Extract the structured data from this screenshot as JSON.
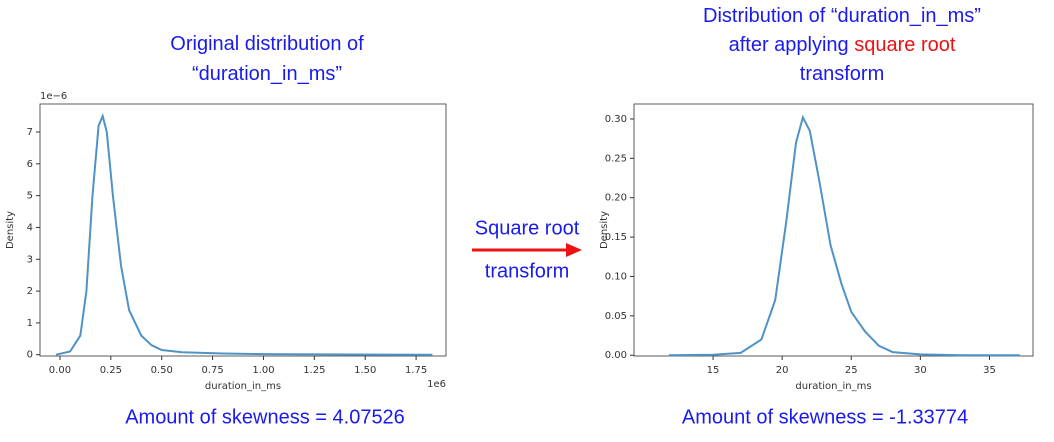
{
  "chart_data": [
    {
      "type": "line",
      "title": [
        "Original distribution of",
        "“duration_in_ms”"
      ],
      "title_color": "#1a1aee",
      "x": [
        -0.02,
        0.05,
        0.1,
        0.13,
        0.16,
        0.19,
        0.21,
        0.23,
        0.26,
        0.3,
        0.34,
        0.4,
        0.45,
        0.5,
        0.6,
        0.8,
        1.0,
        1.3,
        1.6,
        1.83
      ],
      "values": [
        0,
        0.1,
        0.6,
        2,
        5,
        7.2,
        7.5,
        7,
        5,
        2.8,
        1.4,
        0.6,
        0.3,
        0.15,
        0.08,
        0.04,
        0.02,
        0.01,
        0.005,
        0
      ],
      "color": "#4f93c6",
      "xlabel": "duration_in_ms",
      "ylabel": "Density",
      "x_offset": "1e6",
      "y_offset": "1e−6",
      "xlim": [
        -0.098,
        1.897
      ],
      "ylim": [
        -0.04,
        7.88
      ],
      "xticks": [
        {
          "value": 0,
          "label": "0.00"
        },
        {
          "value": 0.25,
          "label": "0.25"
        },
        {
          "value": 0.5,
          "label": "0.50"
        },
        {
          "value": 0.75,
          "label": "0.75"
        },
        {
          "value": 1,
          "label": "1.00"
        },
        {
          "value": 1.25,
          "label": "1.25"
        },
        {
          "value": 1.5,
          "label": "1.50"
        },
        {
          "value": 1.75,
          "label": "1.75"
        }
      ],
      "yticks": [
        0,
        1,
        2,
        3,
        4,
        5,
        6,
        7
      ],
      "annotation": "Amount of skewness = 4.07526"
    },
    {
      "type": "line",
      "title": [
        "Distribution of “duration_in_ms”",
        "after applying",
        "transform"
      ],
      "title_color": "#1a1aee",
      "title_highlight": {
        "text": "square root",
        "color": "#ee1111"
      },
      "x": [
        11.8,
        15,
        17,
        18.5,
        19.5,
        20.3,
        21,
        21.5,
        22,
        22.7,
        23.5,
        24.3,
        25,
        26,
        27,
        28,
        30,
        33,
        37.2
      ],
      "values": [
        0,
        0.0005,
        0.003,
        0.02,
        0.07,
        0.17,
        0.27,
        0.302,
        0.285,
        0.22,
        0.14,
        0.09,
        0.055,
        0.03,
        0.012,
        0.004,
        0.001,
        0,
        0
      ],
      "color": "#4f93c6",
      "xlabel": "duration_in_ms",
      "ylabel": "Density",
      "xlim": [
        9.28,
        38.15
      ],
      "ylim": [
        -0.001,
        0.319
      ],
      "xticks": [
        15,
        20,
        25,
        30,
        35
      ],
      "yticks": [
        {
          "value": 0,
          "label": "0.00"
        },
        {
          "value": 0.05,
          "label": "0.05"
        },
        {
          "value": 0.1,
          "label": "0.10"
        },
        {
          "value": 0.15,
          "label": "0.15"
        },
        {
          "value": 0.2,
          "label": "0.20"
        },
        {
          "value": 0.25,
          "label": "0.25"
        },
        {
          "value": 0.3,
          "label": "0.30"
        }
      ],
      "annotation": "Amount of skewness = -1.33774"
    }
  ],
  "arrow": {
    "lines": [
      "Square root",
      "transform"
    ],
    "text_color": "#1a1aee",
    "color": "#ee1111"
  }
}
